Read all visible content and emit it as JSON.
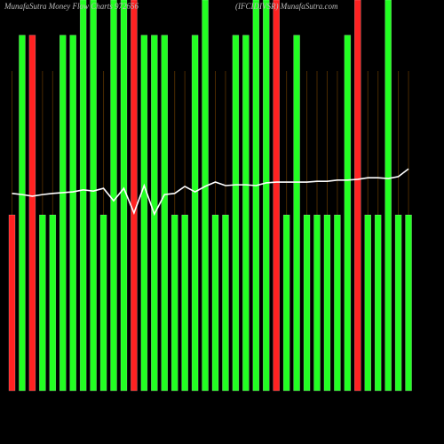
{
  "chart_data": {
    "type": "bar",
    "title": "MunafaSutra  Money Flow  Charts 972656",
    "subtitle": "(IFCIDIVSR)  MunafaSutra.com",
    "ylim": [
      0,
      100
    ],
    "values": [
      45,
      91,
      91,
      45,
      45,
      91,
      91,
      100,
      100,
      45,
      100,
      100,
      100,
      91,
      91,
      91,
      45,
      45,
      91,
      100,
      45,
      45,
      91,
      91,
      100,
      100,
      100,
      45,
      91,
      45,
      45,
      45,
      45,
      91,
      100,
      45,
      45,
      100,
      45,
      45
    ],
    "colors": [
      "#ff2222",
      "#22ff22",
      "#ff2222",
      "#22ff22",
      "#22ff22",
      "#22ff22",
      "#22ff22",
      "#22ff22",
      "#22ff22",
      "#22ff22",
      "#22ff22",
      "#22ff22",
      "#ff2222",
      "#22ff22",
      "#22ff22",
      "#22ff22",
      "#22ff22",
      "#22ff22",
      "#22ff22",
      "#22ff22",
      "#22ff22",
      "#22ff22",
      "#22ff22",
      "#22ff22",
      "#22ff22",
      "#22ff22",
      "#ff2222",
      "#22ff22",
      "#22ff22",
      "#22ff22",
      "#22ff22",
      "#22ff22",
      "#22ff22",
      "#22ff22",
      "#ff2222",
      "#22ff22",
      "#22ff22",
      "#22ff22",
      "#22ff22",
      "#22ff22"
    ],
    "line": {
      "color": "#ffffff",
      "values": [
        50.5,
        50.2,
        49.8,
        50.2,
        50.5,
        50.7,
        50.9,
        51.4,
        51.1,
        51.8,
        48.6,
        51.8,
        45.5,
        52.5,
        45.2,
        50.2,
        50.5,
        52.3,
        50.9,
        52.3,
        53.4,
        52.5,
        52.7,
        52.7,
        52.5,
        53.2,
        53.4,
        53.4,
        53.4,
        53.4,
        53.6,
        53.6,
        53.9,
        53.9,
        54.1,
        54.5,
        54.5,
        54.3,
        54.8,
        56.8
      ]
    }
  }
}
